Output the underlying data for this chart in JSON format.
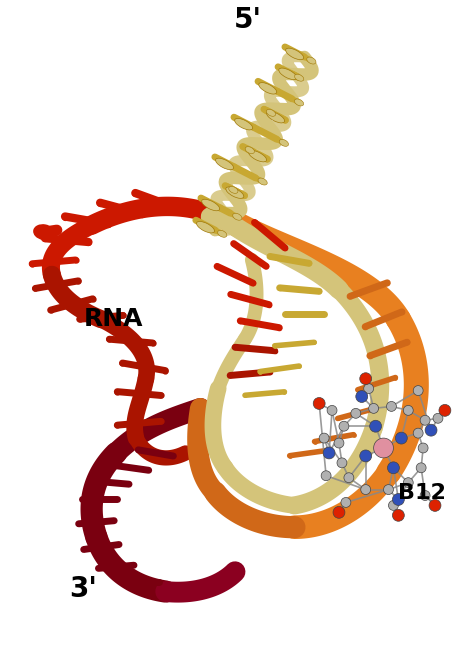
{
  "background_color": "#ffffff",
  "label_5prime": "5'",
  "label_3prime": "3'",
  "label_rna": "RNA",
  "label_b12": "B12",
  "gold_light": "#D4C47A",
  "gold_mid": "#C8A832",
  "gold_dark": "#A07808",
  "orange_bright": "#E88020",
  "orange_mid": "#D06818",
  "red_bright": "#CC1800",
  "red_mid": "#AA1400",
  "darkred": "#7A0010",
  "darkred2": "#8B0020",
  "b12_gray": "#B0B0B0",
  "b12_gray_dark": "#888888",
  "b12_pink": "#E090A0",
  "b12_blue": "#3050B8",
  "b12_red": "#DD2200",
  "fig_width": 4.74,
  "fig_height": 6.46,
  "dpi": 100
}
